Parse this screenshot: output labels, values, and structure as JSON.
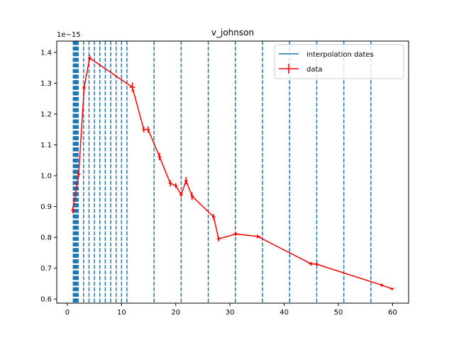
{
  "chart_data": {
    "type": "line",
    "title": "v_johnson",
    "xlabel": "",
    "ylabel": "",
    "y_offset_label": "1e−15",
    "xlim": [
      -1.95,
      62.95
    ],
    "ylim": [
      0.5866,
      1.4366
    ],
    "x_ticks": [
      0,
      10,
      20,
      30,
      40,
      50,
      60
    ],
    "x_tick_labels": [
      "0",
      "10",
      "20",
      "30",
      "40",
      "50",
      "60"
    ],
    "y_ticks": [
      0.6,
      0.7,
      0.8,
      0.9,
      1.0,
      1.1,
      1.2,
      1.3,
      1.4
    ],
    "y_tick_labels": [
      "0.6",
      "0.7",
      "0.8",
      "0.9",
      "1.0",
      "1.1",
      "1.2",
      "1.3",
      "1.4"
    ],
    "grid": false,
    "legend": {
      "placement": "top-right",
      "entries": [
        "interpolation dates",
        "data"
      ]
    },
    "series": [
      {
        "name": "interpolation dates",
        "kind": "vlines",
        "color": "#1f77b4",
        "x": [
          1.1,
          1.2,
          1.3,
          1.4,
          1.5,
          1.6,
          1.7,
          1.8,
          1.9,
          2.0,
          3.0,
          4.0,
          5.0,
          6.0,
          7.0,
          8.0,
          9.0,
          10.0,
          11.0,
          16.0,
          21.0,
          26.0,
          31.0,
          36.0,
          41.0,
          46.0,
          51.0,
          56.0
        ]
      },
      {
        "name": "data",
        "kind": "errorbar",
        "color": "#ff0000",
        "x": [
          1.0,
          2.1,
          3.1,
          4.1,
          12.0,
          14.1,
          14.9,
          17.0,
          19.0,
          20.0,
          21.0,
          21.9,
          23.0,
          27.0,
          27.9,
          31.1,
          35.1,
          45.0,
          46.0,
          58.0,
          59.9
        ],
        "y": [
          0.888,
          1.005,
          1.285,
          1.382,
          1.287,
          1.15,
          1.15,
          1.062,
          0.975,
          0.968,
          0.938,
          0.984,
          0.934,
          0.866,
          0.795,
          0.811,
          0.803,
          0.714,
          0.713,
          0.645,
          0.633
        ],
        "xerr": [
          0.3,
          0.3,
          0.3,
          0.3,
          0.5,
          0.3,
          0.3,
          0.3,
          0.3,
          0.3,
          0.3,
          0.3,
          0.3,
          0.3,
          0.3,
          0.5,
          0.5,
          0.5,
          0.3,
          0.3,
          0.3
        ],
        "yerr": [
          0.01,
          0.01,
          0.01,
          0.01,
          0.015,
          0.01,
          0.01,
          0.012,
          0.01,
          0.008,
          0.008,
          0.012,
          0.012,
          0.01,
          0.008,
          0.006,
          0.006,
          0.006,
          0.006,
          0.005,
          0.004
        ]
      }
    ]
  }
}
